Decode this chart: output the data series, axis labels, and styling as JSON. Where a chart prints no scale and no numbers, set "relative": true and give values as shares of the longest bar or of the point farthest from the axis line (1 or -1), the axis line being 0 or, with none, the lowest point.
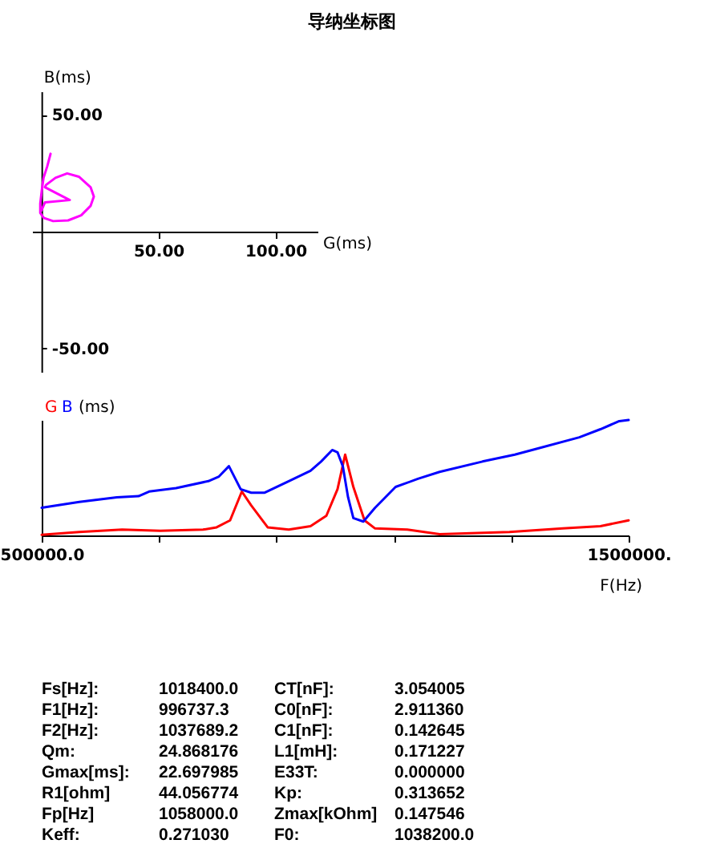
{
  "chart_data": [
    {
      "type": "line",
      "title": "导纳坐标图",
      "xlabel": "G(ms)",
      "ylabel": "B(ms)",
      "xlim": [
        -4,
        118
      ],
      "ylim": [
        -60,
        60
      ],
      "xticks": [
        {
          "value": 50,
          "label": "50.00"
        },
        {
          "value": 100,
          "label": "100.00"
        }
      ],
      "yticks": [
        {
          "value": 50,
          "label": "50.00"
        },
        {
          "value": -50,
          "label": "-50.00"
        }
      ],
      "x": [
        3.9,
        2.5,
        0.9,
        0.2,
        -0.5,
        -0.5,
        1,
        5,
        11.4,
        17,
        21,
        22.4,
        21,
        16,
        11,
        6,
        2,
        1.5,
        12.1,
        1.5,
        0
      ],
      "series": [
        {
          "color": "#ff00ff",
          "values": [
            33.3,
            28,
            23,
            18,
            12,
            8,
            5.9,
            4.5,
            4.8,
            7,
            11,
            15,
            19,
            23.5,
            24.9,
            23,
            20,
            19,
            13.5,
            12.5,
            9
          ]
        }
      ]
    },
    {
      "type": "line",
      "xlabel": "F(Hz)",
      "ylabel": "(ms)",
      "relative": true,
      "xlim": [
        500000,
        1500000
      ],
      "xticks": [
        {
          "value": 500000,
          "label": "500000.0"
        },
        {
          "value": 700000,
          "label": null
        },
        {
          "value": 900000,
          "label": null
        },
        {
          "value": 1100000,
          "label": null
        },
        {
          "value": 1300000,
          "label": null
        },
        {
          "value": 1500000,
          "label": "1500000."
        }
      ],
      "series": [
        {
          "name": "G",
          "color": "#ff0000",
          "x": [
            500000,
            564000,
            637000,
            702000,
            775000,
            798000,
            821000,
            841000,
            857000,
            885000,
            921000,
            958000,
            985000,
            1004000,
            1017000,
            1031000,
            1050000,
            1068000,
            1123000,
            1178000,
            1297000,
            1388000,
            1452000,
            1500000
          ],
          "values": [
            0.005,
            0.03,
            0.05,
            0.04,
            0.05,
            0.07,
            0.13,
            0.38,
            0.26,
            0.07,
            0.05,
            0.08,
            0.17,
            0.4,
            0.7,
            0.42,
            0.13,
            0.06,
            0.05,
            0.01,
            0.03,
            0.06,
            0.08,
            0.13
          ]
        },
        {
          "name": "B",
          "color": "#0000ff",
          "x": [
            500000,
            564000,
            628000,
            665000,
            683000,
            729000,
            784000,
            802000,
            819000,
            839000,
            857000,
            880000,
            921000,
            958000,
            976000,
            995000,
            1004000,
            1013000,
            1022000,
            1031000,
            1048000,
            1068000,
            1103000,
            1141000,
            1178000,
            1251000,
            1306000,
            1343000,
            1416000,
            1452000,
            1484000,
            1500000
          ],
          "values": [
            0.24,
            0.29,
            0.33,
            0.34,
            0.38,
            0.41,
            0.47,
            0.51,
            0.6,
            0.4,
            0.37,
            0.37,
            0.47,
            0.56,
            0.64,
            0.74,
            0.72,
            0.6,
            0.33,
            0.15,
            0.12,
            0.24,
            0.42,
            0.49,
            0.55,
            0.64,
            0.7,
            0.75,
            0.85,
            0.92,
            0.99,
            1
          ]
        }
      ]
    },
    {
      "type": "other",
      "annotations": [
        "Fs[Hz]:",
        "1018400.0",
        "CT[nF]:",
        "3.054005",
        "F1[Hz]:",
        "996737.3",
        "C0[nF]:",
        "2.911360",
        "F2[Hz]:",
        "1037689.2",
        "C1[nF]:",
        "0.142645",
        "Qm:",
        "24.868176",
        "L1[mH]:",
        "0.171227",
        "Gmax[ms]:",
        "22.697985",
        "E33T:",
        "0.000000",
        "R1[ohm]",
        "44.056774",
        "Kp:",
        "0.313652",
        "Fp[Hz]",
        "1058000.0",
        "Zmax[kOhm]",
        "0.147546",
        "Keff:",
        "0.271030",
        "F0:",
        "1038200.0"
      ]
    }
  ]
}
